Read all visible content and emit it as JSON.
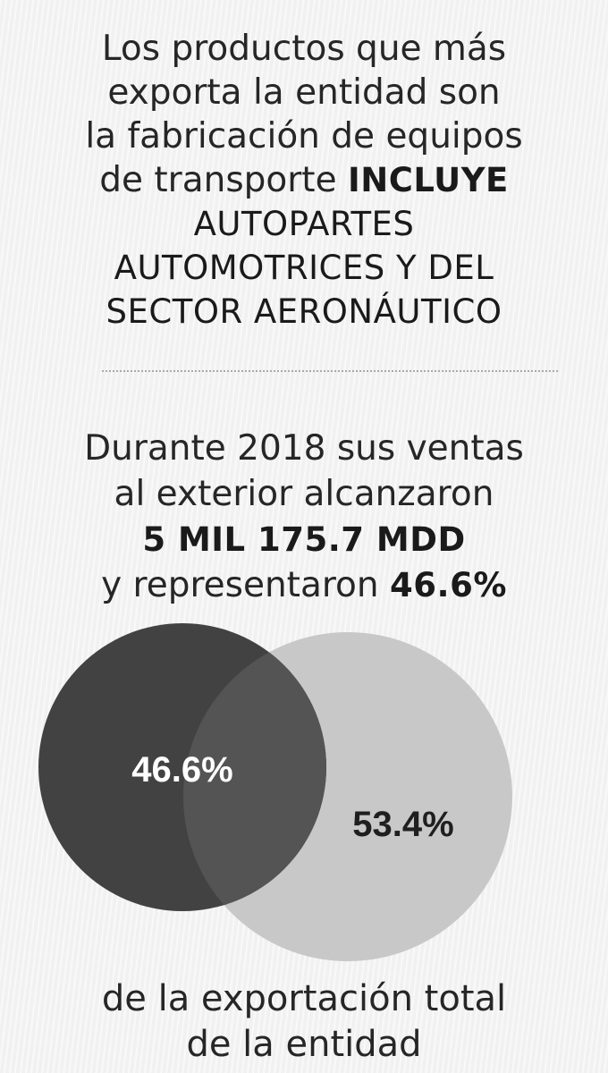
{
  "intro": {
    "line1": "Los productos que más",
    "line2": "exporta la entidad son",
    "line3": "la fabricación de equipos",
    "line4_regular": "de transporte",
    "line4_bold": "INCLUYE",
    "line5": "AUTOPARTES",
    "line6": "AUTOMOTRICES Y DEL",
    "line7": "SECTOR AERONÁUTICO"
  },
  "stats": {
    "line1": "Durante 2018 sus ventas",
    "line2": "al exterior alcanzaron",
    "amount": "5 MIL 175.7 MDD",
    "line4_regular": "y representaron",
    "line4_bold": "46.6%"
  },
  "venn": {
    "left_label": "46.6%",
    "right_label": "53.4%",
    "left_value": 46.6,
    "right_value": 53.4,
    "colors": {
      "left": "#424242",
      "right": "#c8c8c8",
      "overlap": "#545454",
      "left_text": "#ffffff",
      "right_text": "#1f1f1f"
    }
  },
  "footer": {
    "line1": "de la exportación total",
    "line2": "de la entidad"
  }
}
